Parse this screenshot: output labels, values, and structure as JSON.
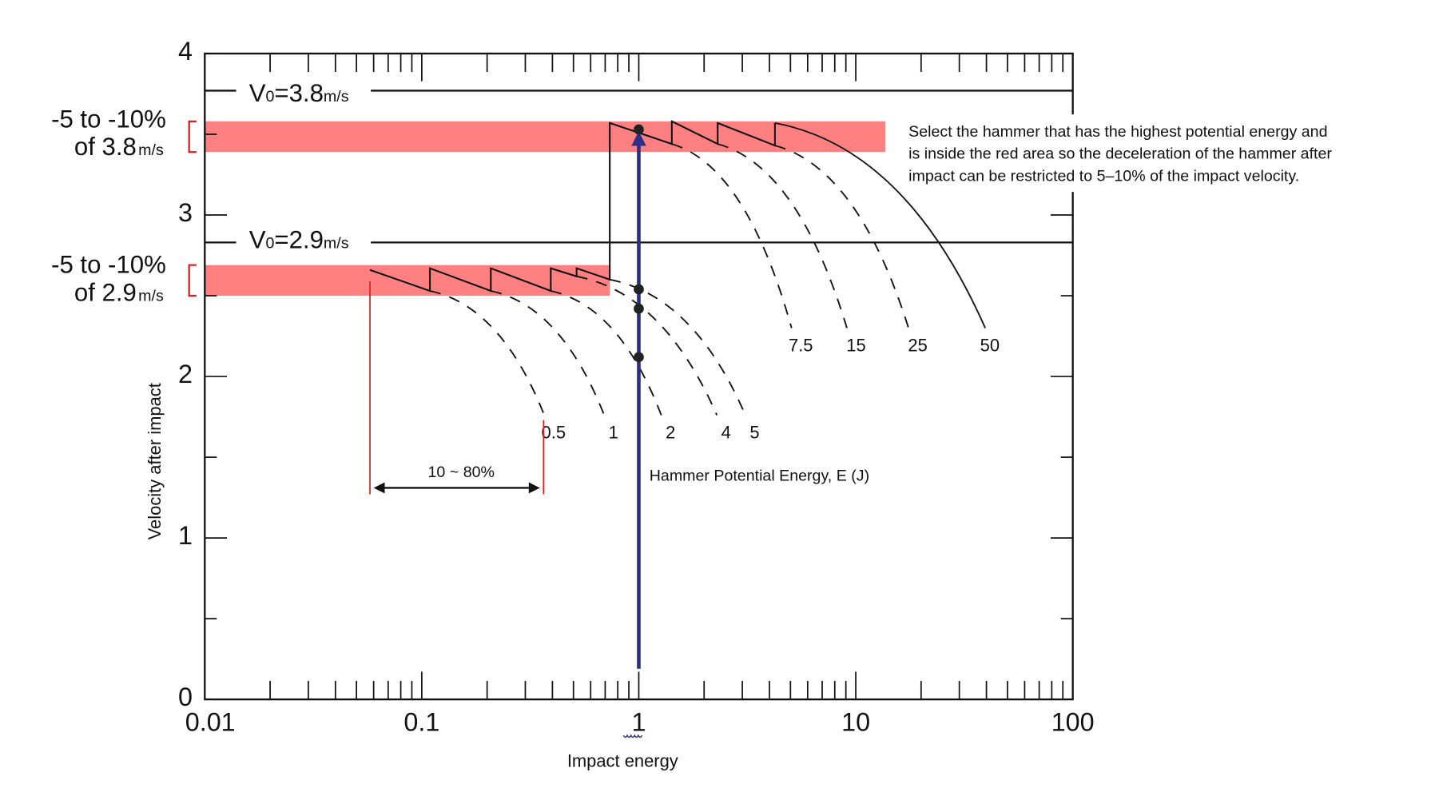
{
  "chart_data": {
    "type": "line",
    "xscale": "log",
    "xlim": [
      0.01,
      100
    ],
    "ylim": [
      0,
      4
    ],
    "xlabel": "Impact energy",
    "ylabel": "Velocity after impact",
    "x_ticks": [
      {
        "value": 0.01,
        "label": "0.01"
      },
      {
        "value": 0.1,
        "label": "0.1"
      },
      {
        "value": 1,
        "label": "1"
      },
      {
        "value": 10,
        "label": "10"
      },
      {
        "value": 100,
        "label": "100"
      }
    ],
    "y_ticks": [
      {
        "value": 0,
        "label": "0"
      },
      {
        "value": 1,
        "label": "1"
      },
      {
        "value": 2,
        "label": "2"
      },
      {
        "value": 3,
        "label": "3"
      },
      {
        "value": 4,
        "label": "4"
      }
    ],
    "reference_lines": [
      {
        "name": "v0-3.8",
        "value": 3.77,
        "label_main": "V",
        "label_sub0": "0",
        "label_val": "=3.8",
        "label_unit": "m/s"
      },
      {
        "name": "v0-2.9",
        "value": 2.83,
        "label_main": "V",
        "label_sub0": "0",
        "label_val": "=2.9",
        "label_unit": "m/s"
      }
    ],
    "bands": [
      {
        "name": "band-3.8",
        "ymin": 3.39,
        "ymax": 3.58,
        "xmin": 0.01,
        "xmax": 13.7,
        "label_line1": "-5 to -10%",
        "label_line2": "of 3.8",
        "label_unit": "m/s"
      },
      {
        "name": "band-2.9",
        "ymin": 2.5,
        "ymax": 2.69,
        "xmin": 0.01,
        "xmax": 0.735,
        "label_line1": "-5 to -10%",
        "label_line2": "of 2.9",
        "label_unit": "m/s"
      }
    ],
    "sawtooth": [
      [
        0.0577,
        2.66
      ],
      [
        0.109,
        2.53
      ],
      [
        0.109,
        2.67
      ],
      [
        0.208,
        2.53
      ],
      [
        0.208,
        2.67
      ],
      [
        0.393,
        2.53
      ],
      [
        0.393,
        2.67
      ],
      [
        0.517,
        2.62
      ],
      [
        0.517,
        2.67
      ],
      [
        0.735,
        2.6
      ],
      [
        0.735,
        3.57
      ],
      [
        1.42,
        3.44
      ],
      [
        1.42,
        3.58
      ],
      [
        2.31,
        3.44
      ],
      [
        2.31,
        3.57
      ],
      [
        4.24,
        3.43
      ],
      [
        4.24,
        3.57
      ]
    ],
    "curves": [
      {
        "label": "0.5",
        "start": [
          0.109,
          2.53
        ],
        "end": [
          0.367,
          1.76
        ],
        "style": "dashed"
      },
      {
        "label": "1",
        "start": [
          0.208,
          2.53
        ],
        "end": [
          0.693,
          1.76
        ],
        "style": "dashed"
      },
      {
        "label": "2",
        "start": [
          0.393,
          2.53
        ],
        "end": [
          1.27,
          1.76
        ],
        "style": "dashed"
      },
      {
        "label": "4",
        "start": [
          0.517,
          2.62
        ],
        "end": [
          2.29,
          1.76
        ],
        "style": "dashed"
      },
      {
        "label": "5",
        "start": [
          0.735,
          2.6
        ],
        "end": [
          3.1,
          1.76
        ],
        "style": "dashed"
      },
      {
        "label": "7.5",
        "start": [
          1.42,
          3.44
        ],
        "end": [
          5.06,
          2.3
        ],
        "style": "dashed"
      },
      {
        "label": "15",
        "start": [
          2.31,
          3.44
        ],
        "end": [
          9.1,
          2.3
        ],
        "style": "dashed"
      },
      {
        "label": "25",
        "start": [
          4.24,
          3.43
        ],
        "end": [
          17.5,
          2.3
        ],
        "style": "dashed"
      },
      {
        "label": "50",
        "start": [
          4.24,
          3.57
        ],
        "end": [
          39.5,
          2.3
        ],
        "style": "solid"
      }
    ],
    "points_at_1J": [
      3.53,
      2.54,
      2.42,
      2.12
    ],
    "arrow_1J": {
      "x": 1,
      "from": 0.19,
      "to": 3.52,
      "color": "#2b2f86"
    },
    "range_marker": {
      "x_from": 0.0577,
      "x_to": 0.364,
      "y": 1.31,
      "label": "10 ~ 80%"
    },
    "curve_family_label": "Hammer Potential Energy, E (J)",
    "annotation": [
      "Select the hammer that has the highest potential energy and",
      "is inside the red area so the deceleration of the hammer after",
      "impact can be restricted to 5–10% of the impact velocity."
    ],
    "colors": {
      "band": "#ff8080",
      "bracket": "#e02020",
      "arrow": "#2b2f86",
      "ink": "#111111"
    }
  }
}
